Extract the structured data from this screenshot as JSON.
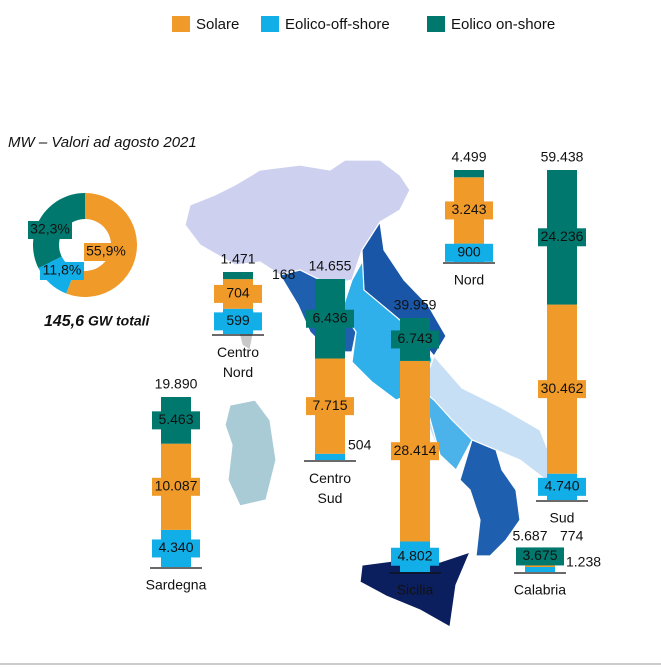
{
  "chart_data": [
    {
      "type": "pie",
      "values": [
        55.9,
        11.8,
        32.3
      ],
      "value_labels": [
        "55,9%",
        "11,8%",
        "32,3%"
      ],
      "colors": [
        "#f09a2a",
        "#11aee8",
        "#00786e"
      ],
      "annotation": "145,6",
      "annotation_unit": "GW totali"
    },
    {
      "type": "bar",
      "subtitle": "MW – Valori ad agosto 2021",
      "categories": [
        "Nord",
        "Centro Nord",
        "Centro Sud",
        "Sicilia",
        "Sud",
        "Calabria",
        "Sardegna"
      ],
      "totals": [
        4499,
        1471,
        14655,
        39959,
        59438,
        5687,
        19890
      ],
      "total_labels": [
        "4.499",
        "1.471",
        "14.655",
        "39.959",
        "59.438",
        "5.687",
        "19.890"
      ],
      "series": [
        {
          "name": "Solare",
          "color": "#f09a2a",
          "values": [
            3243,
            704,
            7715,
            28414,
            30462,
            774,
            10087
          ],
          "value_labels": [
            "3.243",
            "704",
            "7.715",
            "28.414",
            "30.462",
            "774",
            "10.087"
          ]
        },
        {
          "name": "Eolico-off-shore",
          "color": "#11aee8",
          "values": [
            900,
            599,
            504,
            4802,
            4740,
            1238,
            4340
          ],
          "value_labels": [
            "900",
            "599",
            "504",
            "4.802",
            "4.740",
            "1.238",
            "4.340"
          ]
        },
        {
          "name": "Eolico on-shore",
          "color": "#00786e",
          "values": [
            356,
            168,
            6436,
            6743,
            24236,
            3675,
            5463
          ],
          "value_labels": [
            null,
            "168",
            "6.436",
            "6.743",
            "24.236",
            "3.675",
            "5.463"
          ]
        }
      ]
    }
  ]
}
